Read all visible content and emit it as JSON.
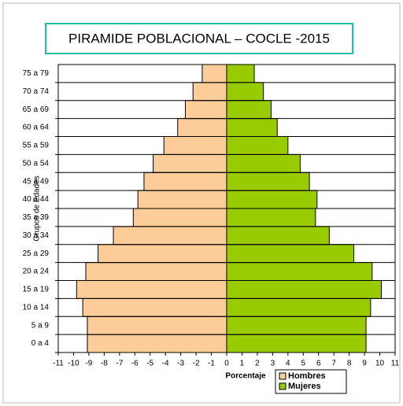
{
  "chart_data": {
    "type": "pyramid",
    "title": "PIRAMIDE POBLACIONAL – COCLE -2015",
    "x_label": "Porcentaje",
    "y_label": "Grupos de Edades",
    "categories": [
      "0 a 4",
      "5 a 9",
      "10 a 14",
      "15 a 19",
      "20 a 24",
      "25 a 29",
      "30 a 34",
      "35 a 39",
      "40 a 44",
      "45 a 49",
      "50 a 54",
      "55 a 59",
      "60 a 64",
      "65 a 69",
      "70 a 74",
      "75 a 79"
    ],
    "series": [
      {
        "name": "Hombres",
        "color": "#fccc99",
        "values": [
          -9.1,
          -9.1,
          -9.4,
          -9.8,
          -9.2,
          -8.4,
          -7.4,
          -6.1,
          -5.8,
          -5.4,
          -4.8,
          -4.1,
          -3.2,
          -2.7,
          -2.2,
          -1.6
        ]
      },
      {
        "name": "Mujeres",
        "color": "#99cc00",
        "values": [
          9.1,
          9.1,
          9.4,
          10.1,
          9.5,
          8.3,
          6.7,
          5.8,
          5.9,
          5.4,
          4.8,
          4.0,
          3.3,
          2.9,
          2.4,
          1.8
        ]
      }
    ],
    "xlim": [
      -11,
      11
    ],
    "xticks": [
      -11,
      -10,
      -9,
      -8,
      -7,
      -6,
      -5,
      -4,
      -3,
      -2,
      -1,
      0,
      1,
      2,
      3,
      4,
      5,
      6,
      7,
      8,
      9,
      10,
      11
    ]
  }
}
